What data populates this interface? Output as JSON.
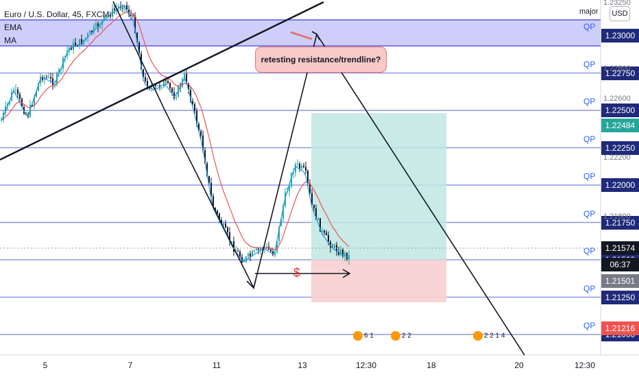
{
  "chart_data": {
    "type": "candlestick",
    "symbol_title": "Euro / U.S. Dollar, 45, FXCM",
    "indicators": [
      "EMA",
      "MA"
    ],
    "currency_button": "USD",
    "scale_label": "major",
    "annotation": "retesting resistance/trendline?",
    "marker_symbol": "$",
    "x_ticks": [
      "5",
      "7",
      "11",
      "13",
      "12:30",
      "18",
      "20",
      "12:30"
    ],
    "price_levels": [
      "1.23000",
      "1.22750",
      "1.22500",
      "1.22250",
      "1.22000",
      "1.21750",
      "1.21500",
      "1.21250",
      "1.21000"
    ],
    "minor_ticks": [
      "1.23250",
      "1.22800",
      "1.22600",
      "1.22200",
      "1.21800"
    ],
    "level_marker": "QP",
    "current_price": "1.21574",
    "countdown": "06:37",
    "price_line_2": "1.21501",
    "green_label": "1.22484",
    "red_label": "1.21216",
    "events": [
      "6 1",
      "2 2",
      "2 2 1 4"
    ],
    "colors": {
      "up": "#26a69a",
      "down": "#131722",
      "level": "#5b6fd6",
      "zone": "#5d5cf5",
      "tp": "#26a69a",
      "sl": "#ef5350",
      "ema": "#ef5350",
      "ma": "#2196f3"
    }
  }
}
